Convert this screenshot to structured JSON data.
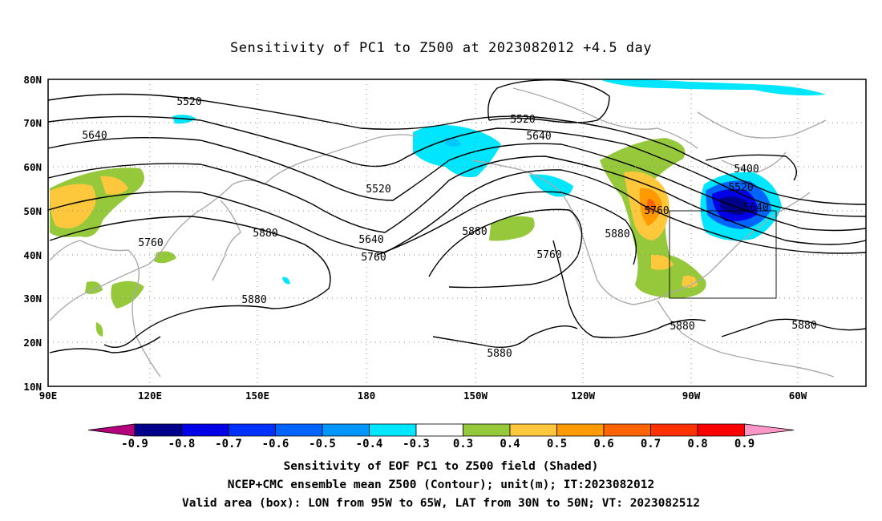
{
  "title": "Sensitivity of PC1 to Z500 at 2023082012 +4.5 day",
  "lat_labels": [
    "80N",
    "70N",
    "60N",
    "50N",
    "40N",
    "30N",
    "20N",
    "10N"
  ],
  "lon_labels": [
    "90E",
    "120E",
    "150E",
    "180",
    "150W",
    "120W",
    "90W",
    "60W"
  ],
  "contour_labels": [
    "5520",
    "5640",
    "5520",
    "5640",
    "5520",
    "5400",
    "5520",
    "5640",
    "5760",
    "5880",
    "5640",
    "5760",
    "5880",
    "5760",
    "5880",
    "5760",
    "5880",
    "5880",
    "5880",
    "5880"
  ],
  "colorbar": {
    "labels": [
      "-0.9",
      "-0.8",
      "-0.7",
      "-0.6",
      "-0.5",
      "-0.4",
      "-0.3",
      "0.3",
      "0.4",
      "0.5",
      "0.6",
      "0.7",
      "0.8",
      "0.9"
    ],
    "colors": [
      "#b4007c",
      "#00008b",
      "#0000e6",
      "#0032ff",
      "#0064ff",
      "#0096ff",
      "#00e6ff",
      "#ffffff",
      "#96c83c",
      "#ffc83c",
      "#ff9b00",
      "#ff6400",
      "#ff3200",
      "#ff0000",
      "#ff96c8"
    ]
  },
  "caption": {
    "line1": "Sensitivity of EOF PC1 to Z500 field (Shaded)",
    "line2": "NCEP+CMC ensemble mean Z500 (Contour); unit(m); IT:2023082012",
    "line3": "Valid area (box): LON from 95W to 65W, LAT from 30N to 50N; VT: 2023082512"
  }
}
